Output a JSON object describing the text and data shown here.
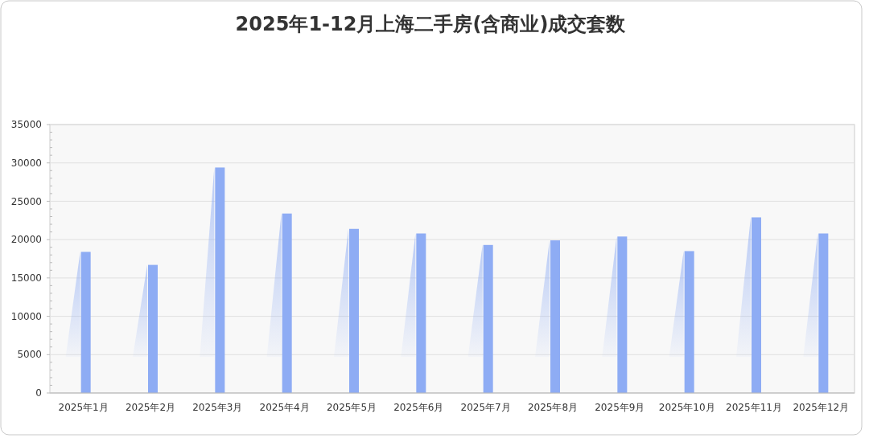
{
  "chart_data": {
    "type": "bar",
    "title": "2025年1-12月上海二手房(含商业)成交套数",
    "categories": [
      "2025年1月",
      "2025年2月",
      "2025年3月",
      "2025年4月",
      "2025年5月",
      "2025年6月",
      "2025年7月",
      "2025年8月",
      "2025年9月",
      "2025年10月",
      "2025年11月",
      "2025年12月"
    ],
    "values": [
      18400,
      16700,
      29400,
      23400,
      21400,
      20800,
      19300,
      19900,
      20400,
      18500,
      22900,
      20800
    ],
    "color": "#8eacf4",
    "ylim": [
      0,
      35000
    ],
    "yticks": [
      0,
      5000,
      10000,
      15000,
      20000,
      25000,
      30000,
      35000
    ],
    "grid": "y"
  }
}
